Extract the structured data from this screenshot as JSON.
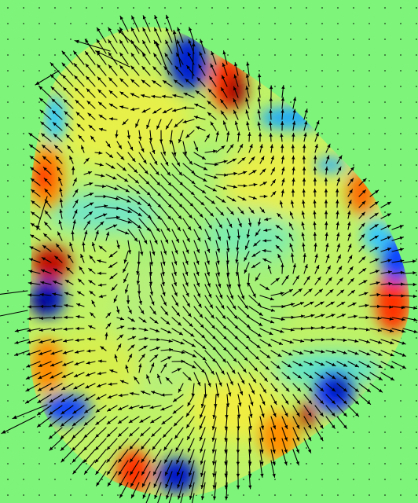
{
  "figure": {
    "kind": "vector field (quiver) overlaid on colour field",
    "colormap": "jet",
    "background_color": "#7ef47a",
    "arrow_color": "#000000",
    "colors": {
      "dark_red": "#7f0000",
      "red": "#ff2a00",
      "orange": "#ff9a00",
      "yellow": "#f4f23a",
      "light_green": "#b9f060",
      "green": "#7ef47a",
      "cyan": "#2de6d8",
      "light_blue": "#18a8ff",
      "blue": "#0030ff",
      "dark_blue": "#000090"
    }
  }
}
